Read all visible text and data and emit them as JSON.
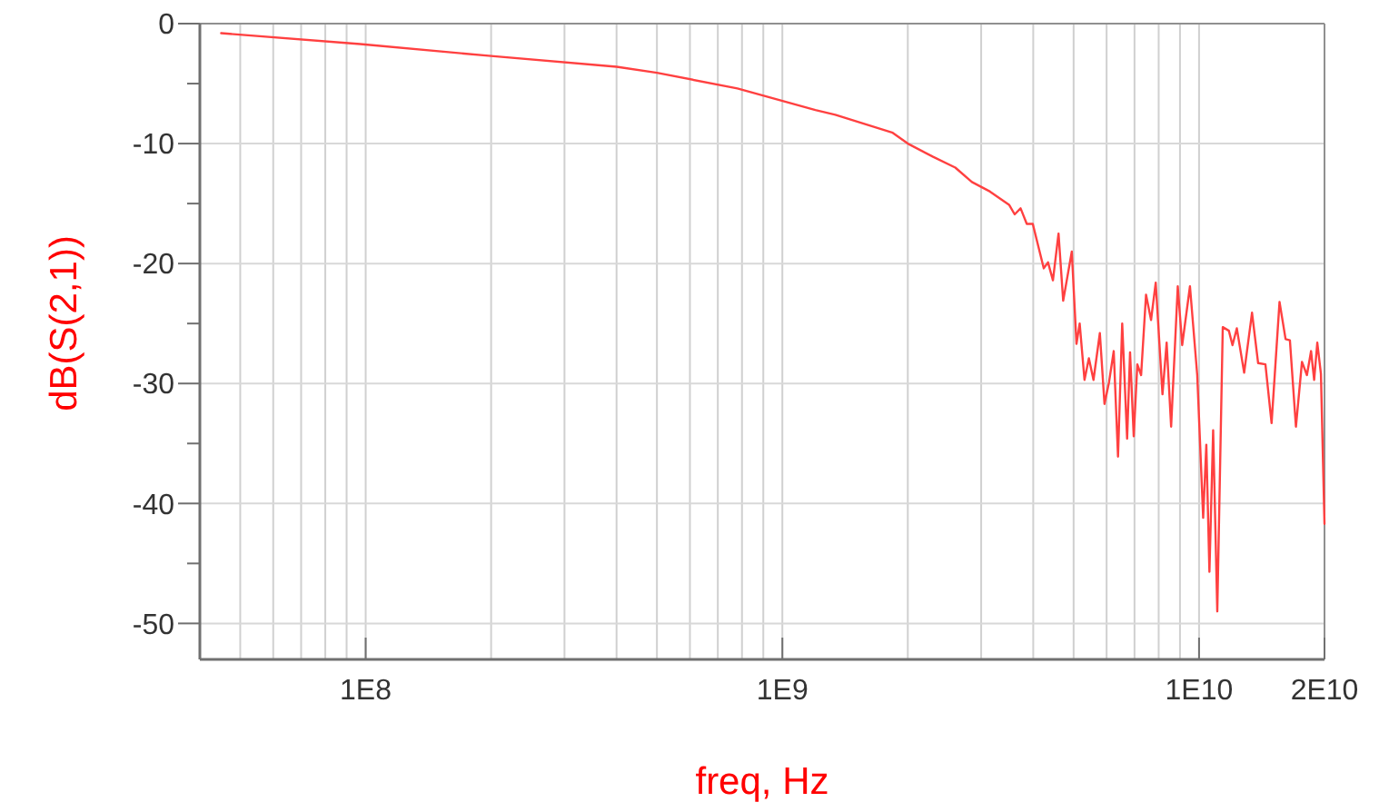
{
  "chart_data": {
    "type": "line",
    "xlabel": "freq, Hz",
    "ylabel": "dB(S(2,1))",
    "log": "x",
    "grid": true,
    "marker": "none",
    "line_style": "solid",
    "xlim": [
      40000000,
      20000000000
    ],
    "ylim": [
      -53,
      0
    ],
    "xticks": [
      {
        "value": 50000000,
        "label": null
      },
      {
        "value": 60000000,
        "label": null
      },
      {
        "value": 70000000,
        "label": null
      },
      {
        "value": 80000000,
        "label": null
      },
      {
        "value": 90000000,
        "label": null
      },
      {
        "value": 100000000,
        "label": "1E8"
      },
      {
        "value": 200000000,
        "label": null
      },
      {
        "value": 300000000,
        "label": null
      },
      {
        "value": 400000000,
        "label": null
      },
      {
        "value": 500000000,
        "label": null
      },
      {
        "value": 600000000,
        "label": null
      },
      {
        "value": 700000000,
        "label": null
      },
      {
        "value": 800000000,
        "label": null
      },
      {
        "value": 900000000,
        "label": null
      },
      {
        "value": 1000000000,
        "label": "1E9"
      },
      {
        "value": 2000000000,
        "label": null
      },
      {
        "value": 3000000000,
        "label": null
      },
      {
        "value": 4000000000,
        "label": null
      },
      {
        "value": 5000000000,
        "label": null
      },
      {
        "value": 6000000000,
        "label": null
      },
      {
        "value": 7000000000,
        "label": null
      },
      {
        "value": 8000000000,
        "label": null
      },
      {
        "value": 9000000000,
        "label": null
      },
      {
        "value": 10000000000,
        "label": "1E10"
      },
      {
        "value": 20000000000,
        "label": "2E10"
      }
    ],
    "yticks": [
      0,
      {
        "value": -5,
        "label": null
      },
      -10,
      {
        "value": -15,
        "label": null
      },
      -20,
      {
        "value": -25,
        "label": null
      },
      -30,
      {
        "value": -35,
        "label": null
      },
      -40,
      {
        "value": -45,
        "label": null
      },
      -50
    ],
    "series": [
      {
        "color": "#ff4040",
        "x": [
          45000000,
          97000000,
          200000000,
          400000000,
          500000000,
          780000000,
          1200000000,
          1340000000,
          1840000000,
          2000000000,
          2300000000,
          2600000000,
          2850000000,
          3150000000,
          3500000000,
          3610000000,
          3730000000,
          3860000000,
          3990000000,
          4240000000,
          4340000000,
          4460000000,
          4600000000,
          4720000000,
          4950000000,
          5080000000,
          5170000000,
          5310000000,
          5440000000,
          5580000000,
          5780000000,
          5930000000,
          6080000000,
          6240000000,
          6390000000,
          6540000000,
          6720000000,
          6830000000,
          6970000000,
          7110000000,
          7260000000,
          7460000000,
          7670000000,
          7870000000,
          8170000000,
          8360000000,
          8570000000,
          8890000000,
          9110000000,
          9510000000,
          9900000000,
          10230000000,
          10410000000,
          10590000000,
          10810000000,
          11060000000,
          11400000000,
          11790000000,
          12030000000,
          12320000000,
          12830000000,
          13400000000,
          13860000000,
          14430000000,
          14930000000,
          15600000000,
          16130000000,
          16520000000,
          17080000000,
          17660000000,
          18150000000,
          18570000000,
          18890000000,
          19220000000,
          19610000000,
          20000000000
        ],
        "values": [
          -0.8,
          -1.7,
          -2.7,
          -3.6,
          -4.1,
          -5.4,
          -7.2,
          -7.6,
          -9.1,
          -10.0,
          -11.1,
          -12.0,
          -13.2,
          -14.0,
          -15.1,
          -15.9,
          -15.4,
          -16.7,
          -16.7,
          -20.4,
          -19.9,
          -21.4,
          -17.5,
          -23.1,
          -19.0,
          -26.7,
          -25.0,
          -29.7,
          -27.9,
          -29.7,
          -25.8,
          -31.7,
          -29.9,
          -27.3,
          -36.1,
          -25.0,
          -34.6,
          -27.4,
          -34.4,
          -28.4,
          -29.3,
          -22.6,
          -24.7,
          -21.6,
          -30.9,
          -26.6,
          -33.6,
          -21.9,
          -26.8,
          -21.9,
          -29.3,
          -41.2,
          -35.1,
          -45.7,
          -33.9,
          -49.0,
          -25.3,
          -25.6,
          -26.8,
          -25.4,
          -29.1,
          -24.1,
          -28.3,
          -28.4,
          -33.3,
          -23.2,
          -26.3,
          -26.4,
          -33.6,
          -28.2,
          -29.3,
          -27.3,
          -29.7,
          -26.6,
          -29.2,
          -41.7
        ]
      }
    ]
  }
}
